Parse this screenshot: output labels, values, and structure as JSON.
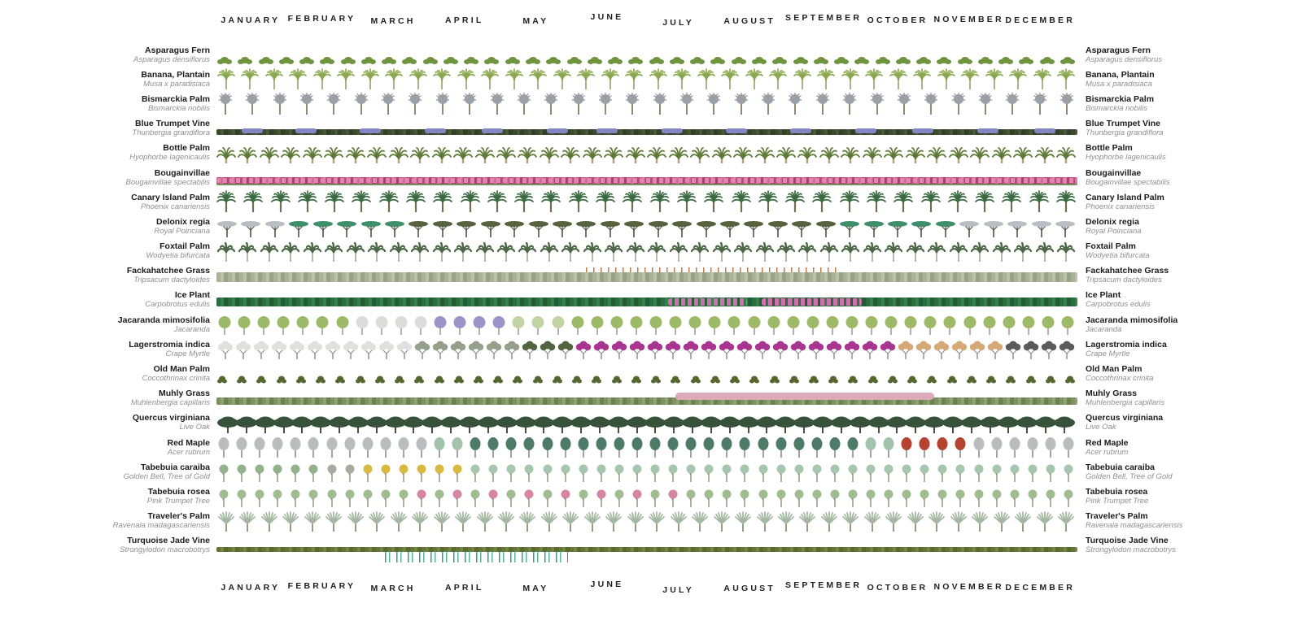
{
  "months": [
    "JANUARY",
    "FEBRUARY",
    "MARCH",
    "APRIL",
    "MAY",
    "JUNE",
    "JULY",
    "AUGUST",
    "SEPTEMBER",
    "OCTOBER",
    "NOVEMBER",
    "DECEMBER"
  ],
  "chart_data": {
    "type": "phenology-calendar",
    "x": [
      "JANUARY",
      "FEBRUARY",
      "MARCH",
      "APRIL",
      "MAY",
      "JUNE",
      "JULY",
      "AUGUST",
      "SEPTEMBER",
      "OCTOBER",
      "NOVEMBER",
      "DECEMBER"
    ],
    "x_range_months": [
      0,
      12
    ],
    "rows": [
      {
        "id": "asparagus-fern",
        "name": "Asparagus Fern",
        "sci": "Asparagus densiflorus",
        "display": "icons",
        "form": "shrub-clump",
        "count": 42,
        "trunk": "#7d8f55",
        "phases": [
          {
            "to": 12,
            "color": "#6f9440",
            "label": "evergreen foliage"
          }
        ]
      },
      {
        "id": "banana-plantain",
        "name": "Banana, Plantain",
        "sci": "Musa x paradisiaca",
        "display": "icons",
        "form": "banana-palm",
        "count": 36,
        "trunk": "#a29a72",
        "phases": [
          {
            "to": 12,
            "color": "#8aa84f",
            "label": "evergreen foliage"
          }
        ]
      },
      {
        "id": "bismarckia-palm",
        "name": "Bismarckia Palm",
        "sci": "Bismarckia nobilis",
        "display": "icons",
        "form": "fan-palm",
        "count": 32,
        "trunk": "#8b7b66",
        "phases": [
          {
            "to": 12,
            "color": "#9aa0a6",
            "label": "silver-grey foliage"
          }
        ]
      },
      {
        "id": "blue-trumpet-vine",
        "name": "Blue Trumpet Vine",
        "sci": "Thunbergia grandiflora",
        "display": "strip",
        "colors": [
          "#3c4a2e",
          "#49583a",
          "#32402a"
        ],
        "overlays": [
          {
            "kind": "blue-flower-clusters",
            "style": "blobs",
            "color": "#8287c4",
            "positions": [
              0.35,
              1.1,
              2.0,
              2.9,
              3.7,
              4.6,
              5.3,
              6.2,
              7.1,
              8.0,
              8.9,
              9.7,
              10.6,
              11.4
            ]
          }
        ]
      },
      {
        "id": "bottle-palm",
        "name": "Bottle Palm",
        "sci": "Hyophorbe lagenicaulis",
        "display": "icons",
        "form": "bottle-palm",
        "count": 40,
        "trunk": "#b0a185",
        "phases": [
          {
            "to": 12,
            "color": "#5d7a36",
            "label": "evergreen foliage"
          }
        ]
      },
      {
        "id": "bougainvillae",
        "name": "Bougainvillae",
        "sci": "Bougainvillae spectabilis",
        "display": "strip",
        "colors": [
          "#c2477a",
          "#d4699a",
          "#b03a6b"
        ],
        "under": "#6f8f5e",
        "overlays": [
          {
            "kind": "pink-flower-texture",
            "style": "mottle",
            "color": "#e087ad",
            "from": 0,
            "to": 12
          }
        ]
      },
      {
        "id": "canary-island-palm",
        "name": "Canary Island Palm",
        "sci": "Phoenix canariensis",
        "display": "icons",
        "form": "feather-palm",
        "count": 32,
        "trunk": "#7c6a52",
        "phases": [
          {
            "to": 12,
            "color": "#3a6a40",
            "label": "evergreen foliage"
          }
        ]
      },
      {
        "id": "delonix-regia",
        "name": "Delonix regia",
        "sci": "Royal Poinciana",
        "display": "icons",
        "form": "umbrella-tree",
        "count": 36,
        "trunk": "#55514b",
        "phases": [
          {
            "to": 1.1,
            "color": "#b9bec2",
            "label": "bare"
          },
          {
            "to": 2.6,
            "color": "#3f8f6d",
            "label": "new teal foliage"
          },
          {
            "to": 8.6,
            "color": "#57623f",
            "label": "deep olive foliage"
          },
          {
            "to": 10.3,
            "color": "#3f8f6d",
            "label": "teal foliage"
          },
          {
            "to": 12,
            "color": "#b9bec2",
            "label": "bare"
          }
        ]
      },
      {
        "id": "foxtail-palm",
        "name": "Foxtail Palm",
        "sci": "Wodyetia bifurcata",
        "display": "icons",
        "form": "foxtail-palm",
        "count": 40,
        "trunk": "#a9a396",
        "phases": [
          {
            "to": 12,
            "color": "#4c6847",
            "label": "evergreen foliage"
          }
        ]
      },
      {
        "id": "fackahatchee-grass",
        "name": "Fackahatchee Grass",
        "sci": "Tripsacum dactyloides",
        "display": "strip",
        "colors": [
          "#a9b297",
          "#bac2a8",
          "#99a289"
        ],
        "overlays": [
          {
            "kind": "orange-seed-heads",
            "style": "dashes",
            "color": "#bf7a45",
            "from": 5.1,
            "to": 8.7
          }
        ]
      },
      {
        "id": "ice-plant",
        "name": "Ice Plant",
        "sci": "Carpobrotus edulis",
        "display": "strip",
        "colors": [
          "#2a6e3f",
          "#35804d",
          "#235b35"
        ],
        "overlays": [
          {
            "kind": "pink-bloom",
            "style": "mottle",
            "color": "#cf6fae",
            "from": 6.3,
            "to": 7.4
          },
          {
            "kind": "pink-bloom",
            "style": "mottle",
            "color": "#cf6fae",
            "from": 7.6,
            "to": 9.0
          }
        ]
      },
      {
        "id": "jacaranda-mimosifolia",
        "name": "Jacaranda mimosifolia",
        "sci": "Jacaranda",
        "display": "icons",
        "form": "round-tree",
        "count": 44,
        "trunk": "#98988a",
        "phases": [
          {
            "to": 1.8,
            "color": "#9cba68",
            "label": "green foliage"
          },
          {
            "to": 2.9,
            "color": "#dcdcda",
            "label": "bare"
          },
          {
            "to": 4.0,
            "color": "#9a94c8",
            "label": "lavender bloom"
          },
          {
            "to": 5.0,
            "color": "#c2d4a4",
            "label": "new pale foliage"
          },
          {
            "to": 12,
            "color": "#9cba68",
            "label": "green foliage"
          }
        ]
      },
      {
        "id": "lagerstromia-indica",
        "name": "Lagerstromia indica",
        "sci": "Crape Myrtle",
        "display": "icons",
        "form": "vase-tree",
        "count": 48,
        "trunk": "#8a8a8a",
        "phases": [
          {
            "to": 2.8,
            "color": "#e0e0de",
            "label": "pale dormant"
          },
          {
            "to": 4.2,
            "color": "#94a089",
            "label": "grey-green new foliage"
          },
          {
            "to": 5.0,
            "color": "#50643f",
            "label": "deep green foliage"
          },
          {
            "to": 9.4,
            "color": "#a8358f",
            "label": "magenta bloom"
          },
          {
            "to": 10.9,
            "color": "#d5a878",
            "label": "tan autumn foliage"
          },
          {
            "to": 12,
            "color": "#5a5a5a",
            "label": "bare branches"
          }
        ]
      },
      {
        "id": "old-man-palm",
        "name": "Old Man Palm",
        "sci": "Coccothrinax crinita",
        "display": "icons",
        "form": "dwarf-clump",
        "count": 44,
        "trunk": "#6b6b4a",
        "phases": [
          {
            "to": 12,
            "color": "#55662f",
            "label": "evergreen foliage"
          }
        ]
      },
      {
        "id": "muhly-grass",
        "name": "Muhly Grass",
        "sci": "Muhlenbergia capillaris",
        "display": "strip",
        "colors": [
          "#7d9160",
          "#8fa370",
          "#6d8050"
        ],
        "overlays": [
          {
            "kind": "pink-plumes",
            "style": "plume",
            "color": "#dcaab8",
            "from": 6.4,
            "to": 10.0
          }
        ]
      },
      {
        "id": "quercus-virginiana",
        "name": "Quercus virginiana",
        "sci": "Live Oak",
        "display": "icons",
        "form": "oak-tree",
        "count": 46,
        "trunk": "#57493a",
        "phases": [
          {
            "to": 12,
            "color": "#36523a",
            "label": "evergreen foliage"
          }
        ]
      },
      {
        "id": "red-maple",
        "name": "Red Maple",
        "sci": "Acer rubrum",
        "display": "icons",
        "form": "upright-tree",
        "count": 48,
        "trunk": "#7e7e78",
        "phases": [
          {
            "to": 2.9,
            "color": "#b9bdbd",
            "label": "bare"
          },
          {
            "to": 3.4,
            "color": "#a4c3ac",
            "label": "new pale foliage"
          },
          {
            "to": 8.9,
            "color": "#4e7a68",
            "label": "blue-green foliage"
          },
          {
            "to": 9.5,
            "color": "#a4c3ac",
            "label": "pale foliage"
          },
          {
            "to": 10.6,
            "color": "#b5432f",
            "label": "red autumn foliage"
          },
          {
            "to": 12,
            "color": "#b9bdbd",
            "label": "bare"
          }
        ]
      },
      {
        "id": "tabebuia-caraiba",
        "name": "Tabebuia caraiba",
        "sci": "Golden Bell, Tree of Gold",
        "display": "icons",
        "form": "small-tree",
        "count": 48,
        "trunk": "#7d7d70",
        "phases": [
          {
            "to": 1.6,
            "color": "#93b289",
            "label": "sage foliage"
          },
          {
            "to": 2.0,
            "color": "#a9aaa2",
            "label": "bare grey"
          },
          {
            "to": 3.6,
            "color": "#d9b93f",
            "label": "yellow bloom"
          },
          {
            "to": 12,
            "color": "#a6c6ae",
            "label": "pale green foliage"
          }
        ]
      },
      {
        "id": "tabebuia-rosea",
        "name": "Tabebuia rosea",
        "sci": "Pink Trumpet Tree",
        "display": "icons",
        "form": "small-tree",
        "count": 48,
        "trunk": "#7d7d70",
        "phases": [
          {
            "to": 2.4,
            "color": "#9fbe90",
            "label": "pale green foliage"
          },
          {
            "to": 6.5,
            "color": "#9fbe90",
            "alt": "#d486a2",
            "label": "pink bloom interspersed"
          },
          {
            "to": 12,
            "color": "#9fbe90",
            "label": "pale green foliage"
          }
        ]
      },
      {
        "id": "travelers-palm",
        "name": "Traveler's Palm",
        "sci": "Ravenala madagascariensis",
        "display": "icons",
        "form": "fan-tree",
        "count": 40,
        "trunk": "#8f8f7a",
        "phases": [
          {
            "to": 12,
            "color": "#a3b8a0",
            "label": "evergreen foliage"
          }
        ]
      },
      {
        "id": "turquoise-jade-vine",
        "name": "Turquoise Jade Vine",
        "sci": "Strongylodon macrobotrys",
        "display": "strip",
        "colors": [
          "#667536",
          "#75863f",
          "#5a6a2e"
        ],
        "overlays": [
          {
            "kind": "turquoise-racemes",
            "style": "streaks",
            "color": "#2f9e82",
            "color2": "#5ab695",
            "from": 2.3,
            "to": 4.9
          }
        ]
      }
    ]
  }
}
